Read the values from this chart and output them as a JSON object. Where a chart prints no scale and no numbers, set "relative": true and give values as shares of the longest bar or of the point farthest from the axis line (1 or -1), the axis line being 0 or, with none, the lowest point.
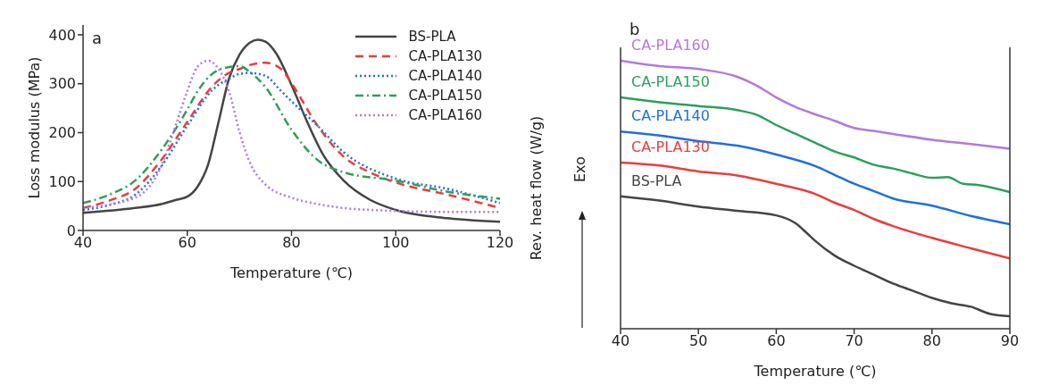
{
  "chart_data": [
    {
      "type": "line",
      "xlabel": "Temperature (℃)",
      "ylabel": "Loss modulus (MPa)",
      "annotations": [
        "a"
      ],
      "xlim": [
        40,
        120
      ],
      "xticks": [
        40,
        60,
        80,
        100,
        120
      ],
      "ylim": [
        0,
        420
      ],
      "yticks": [
        0,
        100,
        200,
        300,
        400
      ],
      "legend": "top right",
      "grid": false,
      "marker": "none",
      "series": [
        {
          "name": "BS-PLA",
          "color": "#444444",
          "line_style": "solid",
          "x": [
            40,
            50,
            55,
            58,
            60,
            62,
            64,
            66,
            68,
            70,
            72,
            73.5,
            75,
            77,
            80,
            83,
            86,
            90,
            95,
            100,
            110,
            120
          ],
          "values": [
            36,
            46,
            54,
            63,
            69,
            90,
            135,
            222,
            310,
            359,
            384,
            390,
            386,
            363,
            297,
            222,
            156,
            102,
            63,
            42,
            25,
            18
          ]
        },
        {
          "name": "CA-PLA130",
          "color": "#ee3b3b",
          "line_style": "dashed",
          "x": [
            40,
            45,
            50,
            55,
            60,
            65,
            68,
            70,
            72,
            75,
            78,
            80,
            85,
            90,
            95,
            100,
            110,
            120
          ],
          "values": [
            46,
            61,
            85,
            144,
            222,
            297,
            322,
            330,
            338,
            343,
            330,
            301,
            214,
            151,
            119,
            98,
            73,
            46
          ]
        },
        {
          "name": "CA-PLA140",
          "color": "#1f6fe0",
          "line_style": "dotted",
          "x": [
            40,
            45,
            50,
            55,
            60,
            65,
            68,
            70,
            72,
            75,
            78,
            80,
            85,
            90,
            100,
            110,
            120
          ],
          "values": [
            42,
            52,
            73,
            131,
            214,
            289,
            310,
            320,
            322,
            316,
            285,
            264,
            214,
            160,
            106,
            85,
            56
          ]
        },
        {
          "name": "CA-PLA150",
          "color": "#2aa05a",
          "line_style": "dashdot",
          "x": [
            40,
            45,
            50,
            55,
            60,
            62,
            65,
            68,
            70,
            72,
            75,
            80,
            85,
            90,
            100,
            110,
            120
          ],
          "values": [
            56,
            73,
            102,
            164,
            247,
            285,
            322,
            334,
            336,
            324,
            293,
            206,
            144,
            119,
            102,
            79,
            65
          ]
        },
        {
          "name": "CA-PLA160",
          "color": "#b278e0",
          "line_style": "dotted",
          "x": [
            40,
            50,
            55,
            58,
            60,
            62,
            64,
            66,
            68,
            70,
            72,
            75,
            80,
            85,
            90,
            100,
            110,
            120
          ],
          "values": [
            46,
            67,
            131,
            222,
            285,
            335,
            347,
            330,
            285,
            202,
            139,
            94,
            67,
            54,
            46,
            40,
            38,
            38
          ]
        }
      ]
    },
    {
      "type": "line",
      "xlabel": "Temperature (℃)",
      "ylabel": "Rev. heat flow (W/g)",
      "annotations": [
        "b",
        "Exo"
      ],
      "relative": true,
      "xlim": [
        40,
        90
      ],
      "xticks": [
        40,
        50,
        60,
        70,
        80,
        90
      ],
      "legend": false,
      "grid": false,
      "marker": "none",
      "line_style": "solid",
      "series": [
        {
          "name": "CA-PLA160",
          "color": "#b278e0",
          "x": [
            40,
            45,
            50,
            55,
            57.5,
            60,
            62.5,
            65,
            67.5,
            70,
            72.5,
            75,
            80,
            85,
            90
          ],
          "values": [
            1.0,
            0.98,
            0.969,
            0.94,
            0.907,
            0.863,
            0.827,
            0.8,
            0.776,
            0.749,
            0.738,
            0.727,
            0.705,
            0.689,
            0.672
          ]
        },
        {
          "name": "CA-PLA150",
          "color": "#2aa05a",
          "x": [
            40,
            45,
            50,
            55,
            57.5,
            60,
            62.5,
            65,
            67.5,
            70,
            72.5,
            75,
            77.5,
            80,
            82,
            84,
            86,
            90
          ],
          "values": [
            0.863,
            0.845,
            0.831,
            0.816,
            0.798,
            0.76,
            0.727,
            0.694,
            0.661,
            0.639,
            0.612,
            0.598,
            0.579,
            0.563,
            0.566,
            0.541,
            0.536,
            0.51
          ]
        },
        {
          "name": "CA-PLA140",
          "color": "#1f6fe0",
          "x": [
            40,
            45,
            50,
            55,
            60,
            65,
            67.5,
            70,
            72.5,
            75,
            80,
            85,
            90
          ],
          "values": [
            0.736,
            0.721,
            0.7,
            0.683,
            0.65,
            0.607,
            0.574,
            0.541,
            0.514,
            0.486,
            0.459,
            0.421,
            0.39
          ]
        },
        {
          "name": "CA-PLA130",
          "color": "#ee3b3b",
          "x": [
            40,
            45,
            50,
            55,
            60,
            65,
            67.5,
            70,
            72.5,
            75,
            80,
            85,
            90
          ],
          "values": [
            0.62,
            0.609,
            0.587,
            0.572,
            0.541,
            0.503,
            0.47,
            0.443,
            0.41,
            0.383,
            0.339,
            0.3,
            0.262
          ]
        },
        {
          "name": "BS-PLA",
          "color": "#444444",
          "x": [
            40,
            45,
            50,
            55,
            60,
            62.5,
            64,
            65,
            67.5,
            70,
            72.5,
            75,
            77.5,
            80,
            82.5,
            85,
            87.5,
            90
          ],
          "values": [
            0.494,
            0.478,
            0.456,
            0.44,
            0.423,
            0.393,
            0.355,
            0.328,
            0.273,
            0.235,
            0.202,
            0.169,
            0.142,
            0.115,
            0.095,
            0.082,
            0.055,
            0.047
          ]
        }
      ]
    }
  ]
}
